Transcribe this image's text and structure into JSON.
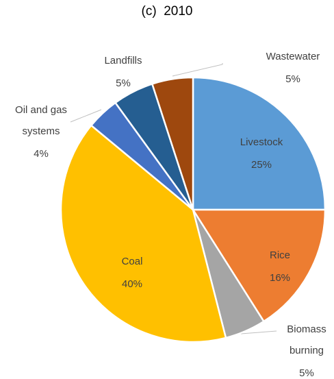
{
  "chart_data": {
    "type": "pie",
    "title": "(c)  2010",
    "categories": [
      "Livestock",
      "Rice",
      "Biomass burning",
      "Coal",
      "Oil and gas systems",
      "Landfills",
      "Wastewater"
    ],
    "values": [
      25,
      16,
      5,
      40,
      4,
      5,
      5
    ],
    "value_labels": [
      "25%",
      "16%",
      "5%",
      "40%",
      "4%",
      "5%",
      "5%"
    ],
    "colors": [
      "#5b9bd5",
      "#ed7d31",
      "#a5a5a5",
      "#ffc000",
      "#4472c4",
      "#255e91",
      "#9e480e"
    ]
  }
}
